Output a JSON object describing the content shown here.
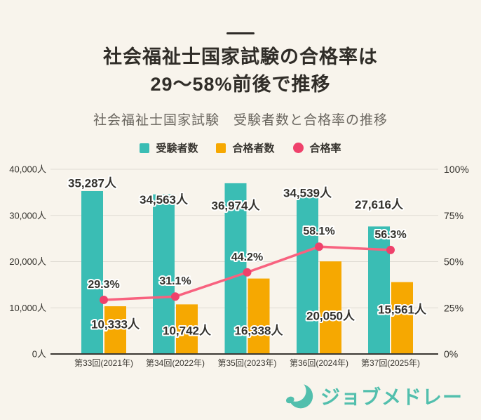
{
  "page": {
    "background": "#F8F4EC"
  },
  "header": {
    "title_line1": "社会福祉士国家試験の合格率は",
    "title_line2": "29～58%前後で推移",
    "subtitle": "社会福祉士国家試験　受験者数と合格率の推移"
  },
  "brand": {
    "logo_text": "ジョブメドレー",
    "color": "#52BFAD"
  },
  "chart_data": {
    "type": "bar+line",
    "title": "社会福祉士国家試験　受験者数と合格率の推移",
    "categories": [
      "第33回(2021年)",
      "第34回(2022年)",
      "第35回(2023年)",
      "第36回(2024年)",
      "第37回(2025年)"
    ],
    "series": [
      {
        "name": "受験者数",
        "type": "bar",
        "axis": "left",
        "color": "#3ABDB4",
        "value_suffix": "人",
        "values": [
          35287,
          34563,
          36974,
          34539,
          27616
        ]
      },
      {
        "name": "合格者数",
        "type": "bar",
        "axis": "left",
        "color": "#F6A801",
        "value_suffix": "人",
        "values": [
          10333,
          10742,
          16338,
          20050,
          15561
        ]
      },
      {
        "name": "合格率",
        "type": "line",
        "axis": "right",
        "color": "#F8627F",
        "dot_color": "#EF416B",
        "value_suffix": "%",
        "values": [
          29.3,
          31.1,
          44.2,
          58.1,
          56.3
        ]
      }
    ],
    "left_axis": {
      "max": 40000,
      "ticks": [
        0,
        10000,
        20000,
        30000,
        40000
      ],
      "suffix": "人"
    },
    "right_axis": {
      "max": 100,
      "ticks": [
        0,
        25,
        50,
        75,
        100
      ],
      "suffix": "%"
    },
    "grid": true,
    "legend_position": "top",
    "layout_hints": {
      "examinee_label_dy": [
        -11,
        8,
        32,
        -2,
        -31
      ],
      "passer_label_y": [
        234,
        243,
        243,
        222,
        213
      ],
      "rate_label_dy": -22
    }
  }
}
